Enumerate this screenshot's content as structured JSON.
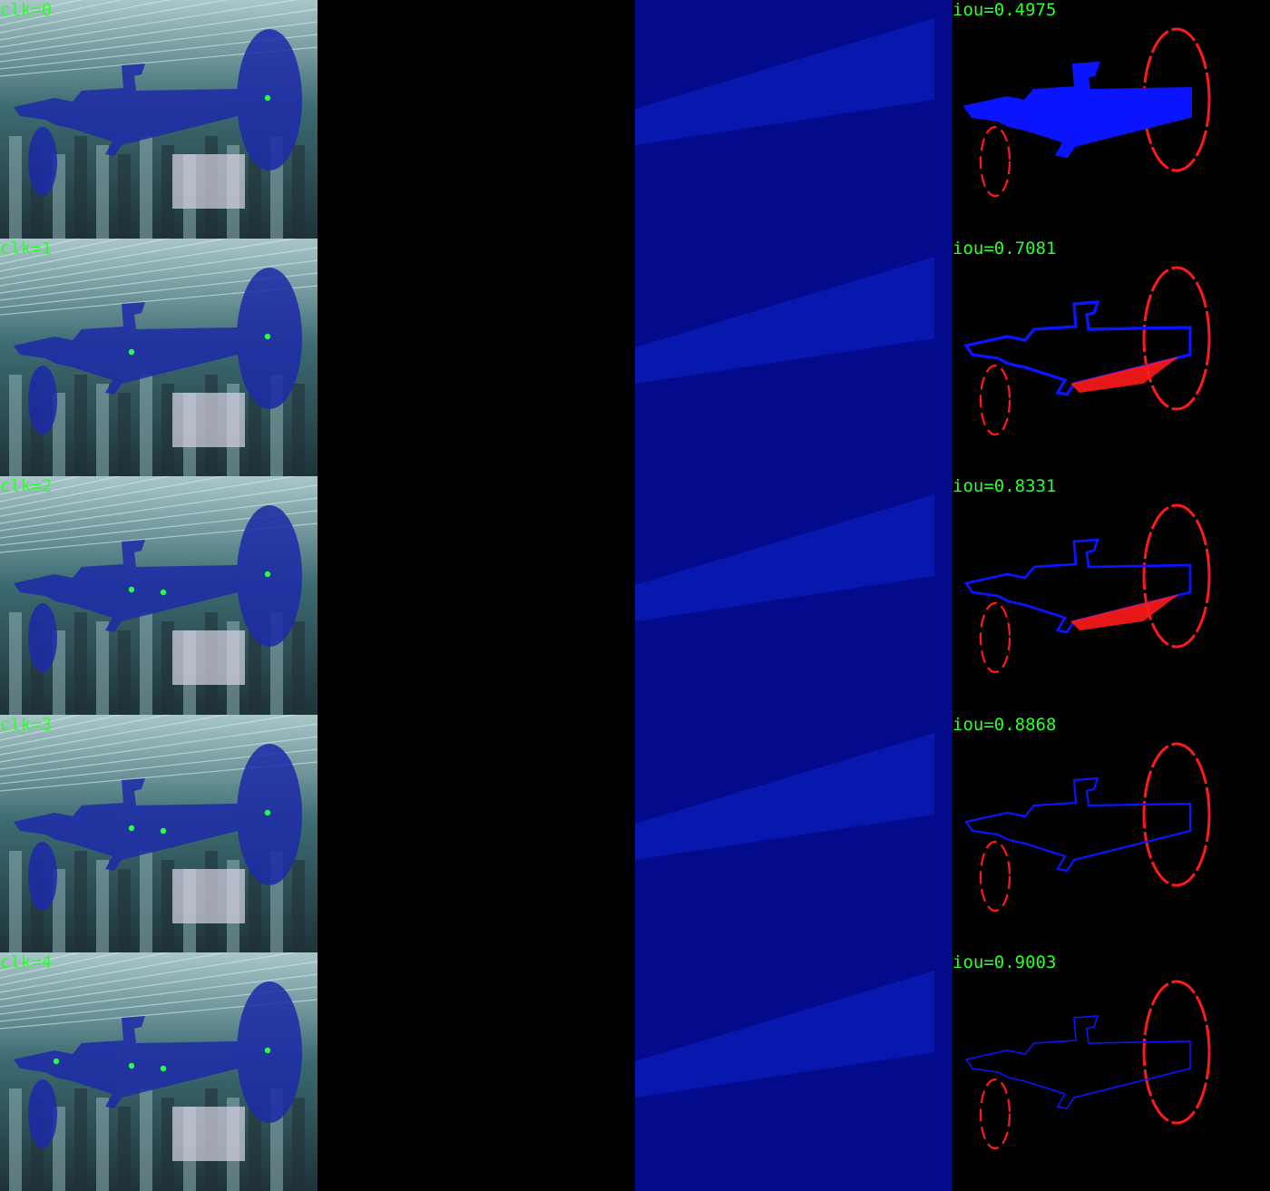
{
  "colors": {
    "label": "#2bff2b",
    "mask": "#ffffff",
    "false_positive": "#0a14ff",
    "false_negative": "#ff1a1a",
    "overlay": "#1c2aa8",
    "click": "#22ff44"
  },
  "columns": [
    "overlay-with-clicks",
    "predicted-mask",
    "probability-heatmap",
    "error-map"
  ],
  "rows": [
    {
      "click_label": "clk=0",
      "iou_label": "iou=0.4975",
      "clicks": 1
    },
    {
      "click_label": "clk=1",
      "iou_label": "iou=0.7081",
      "clicks": 2
    },
    {
      "click_label": "clk=2",
      "iou_label": "iou=0.8331",
      "clicks": 3
    },
    {
      "click_label": "clk=3",
      "iou_label": "iou=0.8868",
      "clicks": 3
    },
    {
      "click_label": "clk=4",
      "iou_label": "iou=0.9003",
      "clicks": 4
    }
  ]
}
